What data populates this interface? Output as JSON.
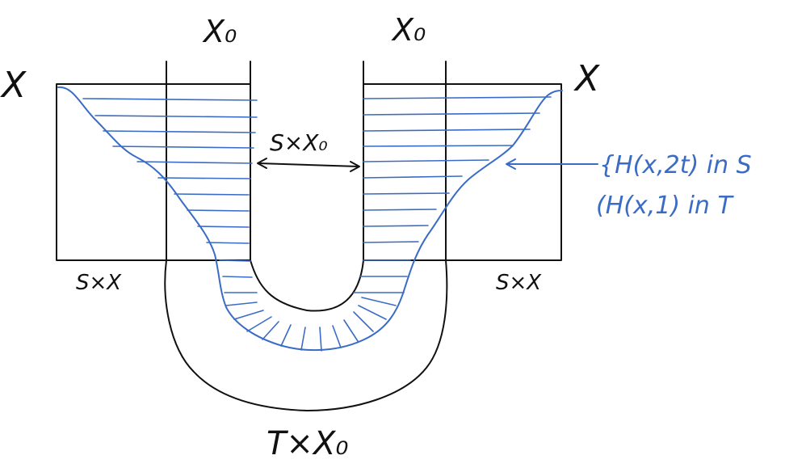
{
  "labels": {
    "x_left": "X",
    "x_right": "X",
    "x0_left": "X₀",
    "x0_right": "X₀",
    "s_x0": "S×X₀",
    "s_x_left": "S×X",
    "s_x_right": "S×X",
    "t_x0": "T×X₀",
    "h_in_s": "{H(x,2t) in S",
    "h_in_t": "(H(x,1) in T"
  },
  "colors": {
    "ink": "#111111",
    "accent": "#3a6cc6"
  }
}
